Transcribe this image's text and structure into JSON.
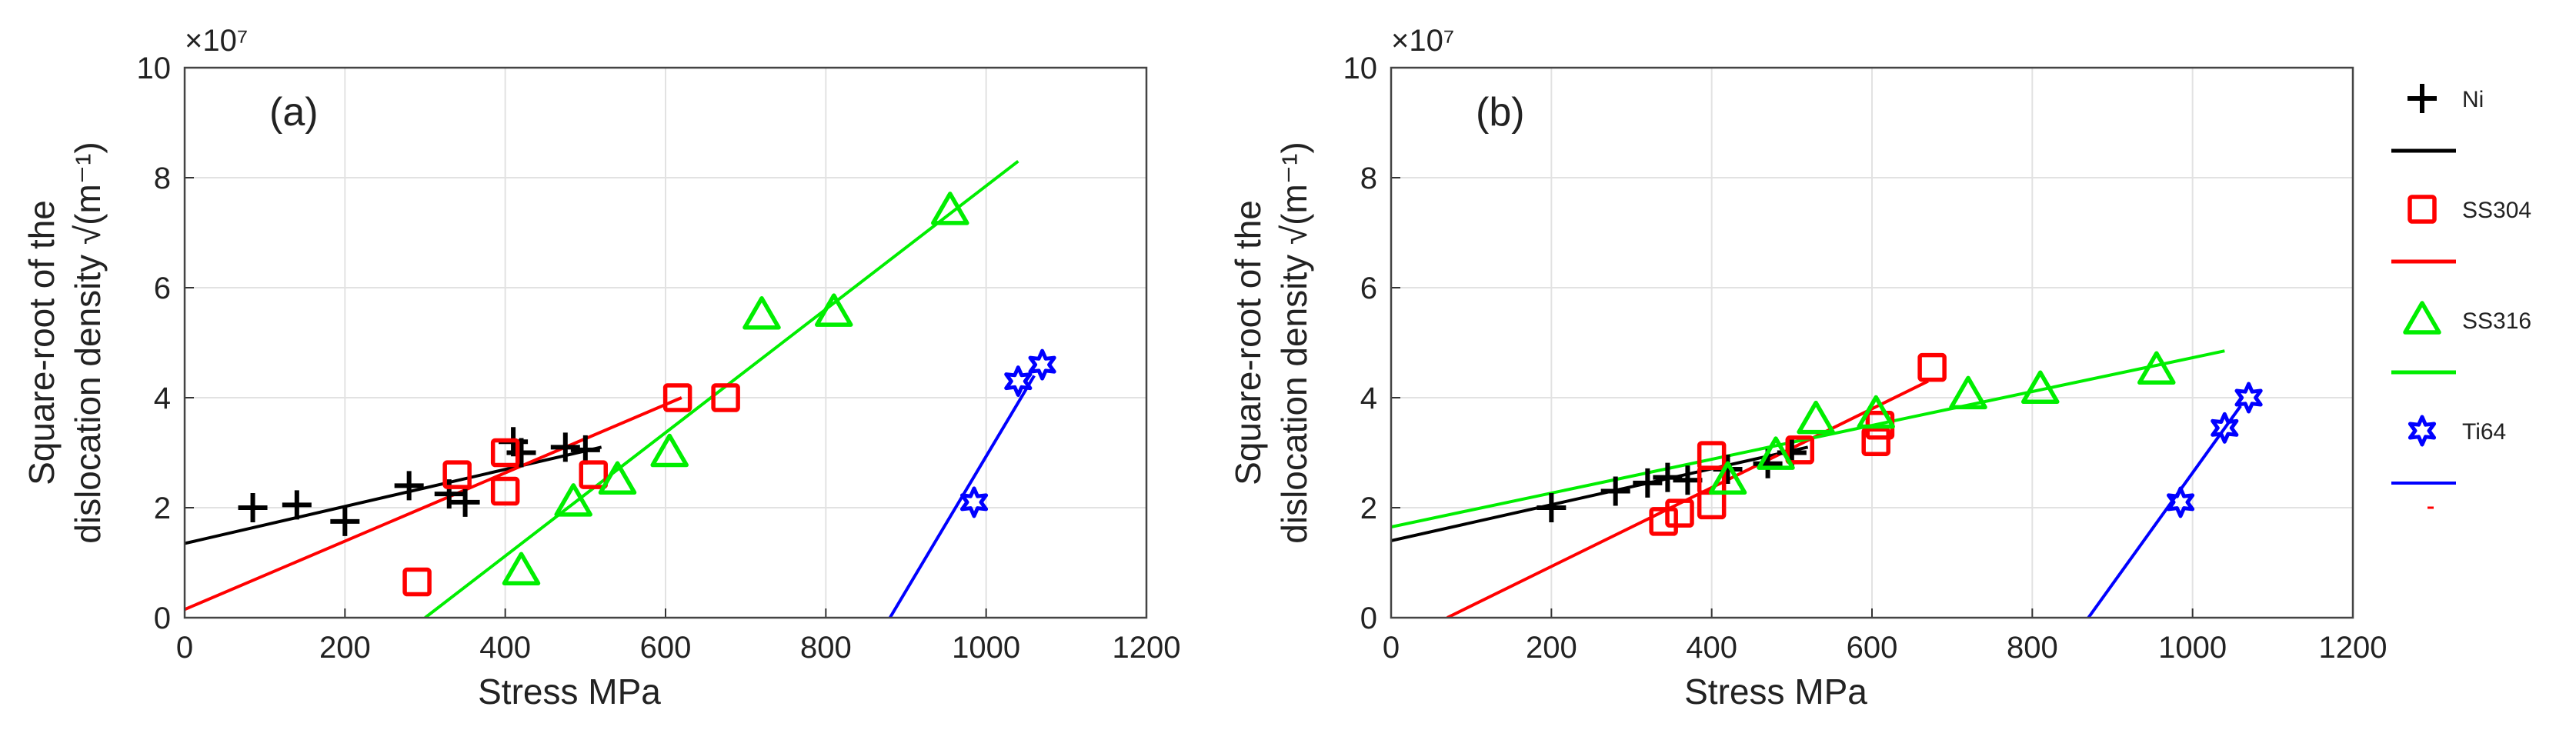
{
  "chart_data": [
    {
      "type": "scatter",
      "panel_label": "(a)",
      "xlabel": "Stress MPa",
      "ylabel_line1": "Square-root of the",
      "ylabel_line2": "dislocation density √(m⁻¹)",
      "exponent_label": "×10⁷",
      "xlim": [
        0,
        1200
      ],
      "ylim": [
        0,
        10
      ],
      "y_multiplier": 10000000,
      "xticks": [
        0,
        200,
        400,
        600,
        800,
        1000,
        1200
      ],
      "yticks": [
        0,
        2,
        4,
        6,
        8,
        10
      ],
      "grid": true,
      "series": [
        {
          "name": "Ni",
          "marker": "plus",
          "color": "#000000",
          "points": [
            [
              85,
              2.0
            ],
            [
              140,
              2.05
            ],
            [
              200,
              1.75
            ],
            [
              280,
              2.4
            ],
            [
              330,
              2.25
            ],
            [
              350,
              2.1
            ],
            [
              410,
              3.2
            ],
            [
              420,
              3.0
            ],
            [
              475,
              3.1
            ],
            [
              500,
              3.05
            ]
          ],
          "fit": [
            [
              0,
              1.35
            ],
            [
              520,
              3.1
            ]
          ]
        },
        {
          "name": "SS304",
          "marker": "square",
          "color": "#ff0000",
          "points": [
            [
              290,
              0.65
            ],
            [
              340,
              2.6
            ],
            [
              400,
              2.3
            ],
            [
              400,
              3.0
            ],
            [
              510,
              2.6
            ],
            [
              615,
              4.0
            ],
            [
              675,
              4.0
            ]
          ],
          "fit": [
            [
              0,
              0.15
            ],
            [
              620,
              4.0
            ]
          ]
        },
        {
          "name": "SS316",
          "marker": "triangle",
          "color": "#00ee00",
          "points": [
            [
              420,
              0.85
            ],
            [
              485,
              2.1
            ],
            [
              540,
              2.5
            ],
            [
              605,
              3.0
            ],
            [
              720,
              5.5
            ],
            [
              810,
              5.55
            ],
            [
              955,
              7.4
            ]
          ],
          "fit": [
            [
              300,
              0.0
            ],
            [
              1040,
              8.3
            ]
          ]
        },
        {
          "name": "Ti64",
          "marker": "star",
          "color": "#0000ff",
          "points": [
            [
              985,
              2.1
            ],
            [
              1040,
              4.3
            ],
            [
              1070,
              4.6
            ]
          ],
          "fit": [
            [
              880,
              0.0
            ],
            [
              1060,
              4.4
            ]
          ]
        }
      ]
    },
    {
      "type": "scatter",
      "panel_label": "(b)",
      "xlabel": "Stress MPa",
      "ylabel_line1": "Square-root of the",
      "ylabel_line2": "dislocation density √(m⁻¹)",
      "exponent_label": "×10⁷",
      "xlim": [
        0,
        1200
      ],
      "ylim": [
        0,
        10
      ],
      "y_multiplier": 10000000,
      "xticks": [
        0,
        200,
        400,
        600,
        800,
        1000,
        1200
      ],
      "yticks": [
        0,
        2,
        4,
        6,
        8,
        10
      ],
      "grid": true,
      "series": [
        {
          "name": "Ni",
          "marker": "plus",
          "color": "#000000",
          "points": [
            [
              200,
              2.0
            ],
            [
              280,
              2.3
            ],
            [
              320,
              2.45
            ],
            [
              345,
              2.55
            ],
            [
              370,
              2.5
            ],
            [
              420,
              2.7
            ],
            [
              470,
              2.8
            ],
            [
              500,
              3.0
            ]
          ],
          "fit": [
            [
              0,
              1.4
            ],
            [
              520,
              3.1
            ]
          ]
        },
        {
          "name": "SS304",
          "marker": "square",
          "color": "#ff0000",
          "points": [
            [
              340,
              1.75
            ],
            [
              360,
              1.9
            ],
            [
              400,
              2.05
            ],
            [
              400,
              2.5
            ],
            [
              400,
              2.95
            ],
            [
              510,
              3.05
            ],
            [
              605,
              3.2
            ],
            [
              610,
              3.5
            ],
            [
              675,
              4.55
            ]
          ],
          "fit": [
            [
              70,
              0.0
            ],
            [
              670,
              4.3
            ]
          ]
        },
        {
          "name": "SS316",
          "marker": "triangle",
          "color": "#00ee00",
          "points": [
            [
              420,
              2.5
            ],
            [
              480,
              2.95
            ],
            [
              530,
              3.6
            ],
            [
              605,
              3.7
            ],
            [
              720,
              4.05
            ],
            [
              810,
              4.15
            ],
            [
              955,
              4.5
            ]
          ],
          "fit": [
            [
              0,
              1.65
            ],
            [
              1040,
              4.85
            ]
          ]
        },
        {
          "name": "Ti64",
          "marker": "star",
          "color": "#0000ff",
          "points": [
            [
              985,
              2.1
            ],
            [
              1040,
              3.45
            ],
            [
              1070,
              4.0
            ]
          ],
          "fit": [
            [
              870,
              0.0
            ],
            [
              1060,
              3.85
            ]
          ]
        }
      ]
    }
  ],
  "legend": {
    "items": [
      {
        "name": "Ni",
        "marker": "plus",
        "color": "#000000"
      },
      {
        "name": "SS304",
        "marker": "square",
        "color": "#ff0000"
      },
      {
        "name": "SS316",
        "marker": "triangle",
        "color": "#00ee00"
      },
      {
        "name": "Ti64",
        "marker": "star",
        "color": "#0000ff"
      }
    ],
    "placement": "right"
  }
}
